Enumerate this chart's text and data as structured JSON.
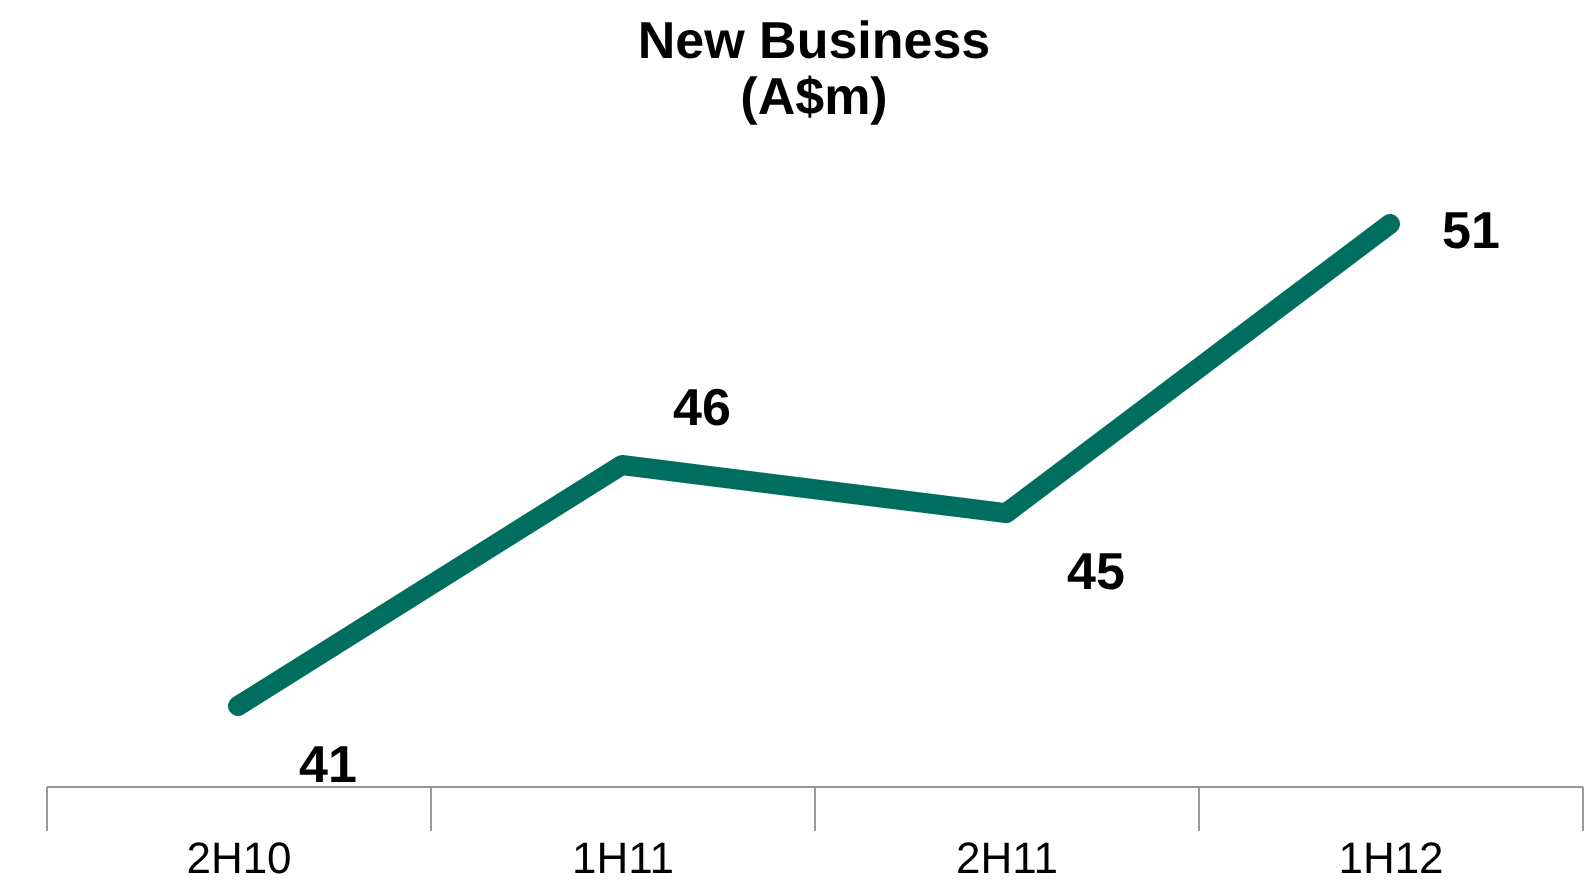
{
  "chart_data": {
    "type": "line",
    "title": "New Business\n(A$m)",
    "categories": [
      "2H10",
      "1H11",
      "2H11",
      "1H12"
    ],
    "series": [
      {
        "color": "#006e5e",
        "values": [
          41,
          46,
          45,
          51
        ]
      }
    ],
    "data_labels": true,
    "line_style": "solid",
    "tick_labels": "x"
  }
}
